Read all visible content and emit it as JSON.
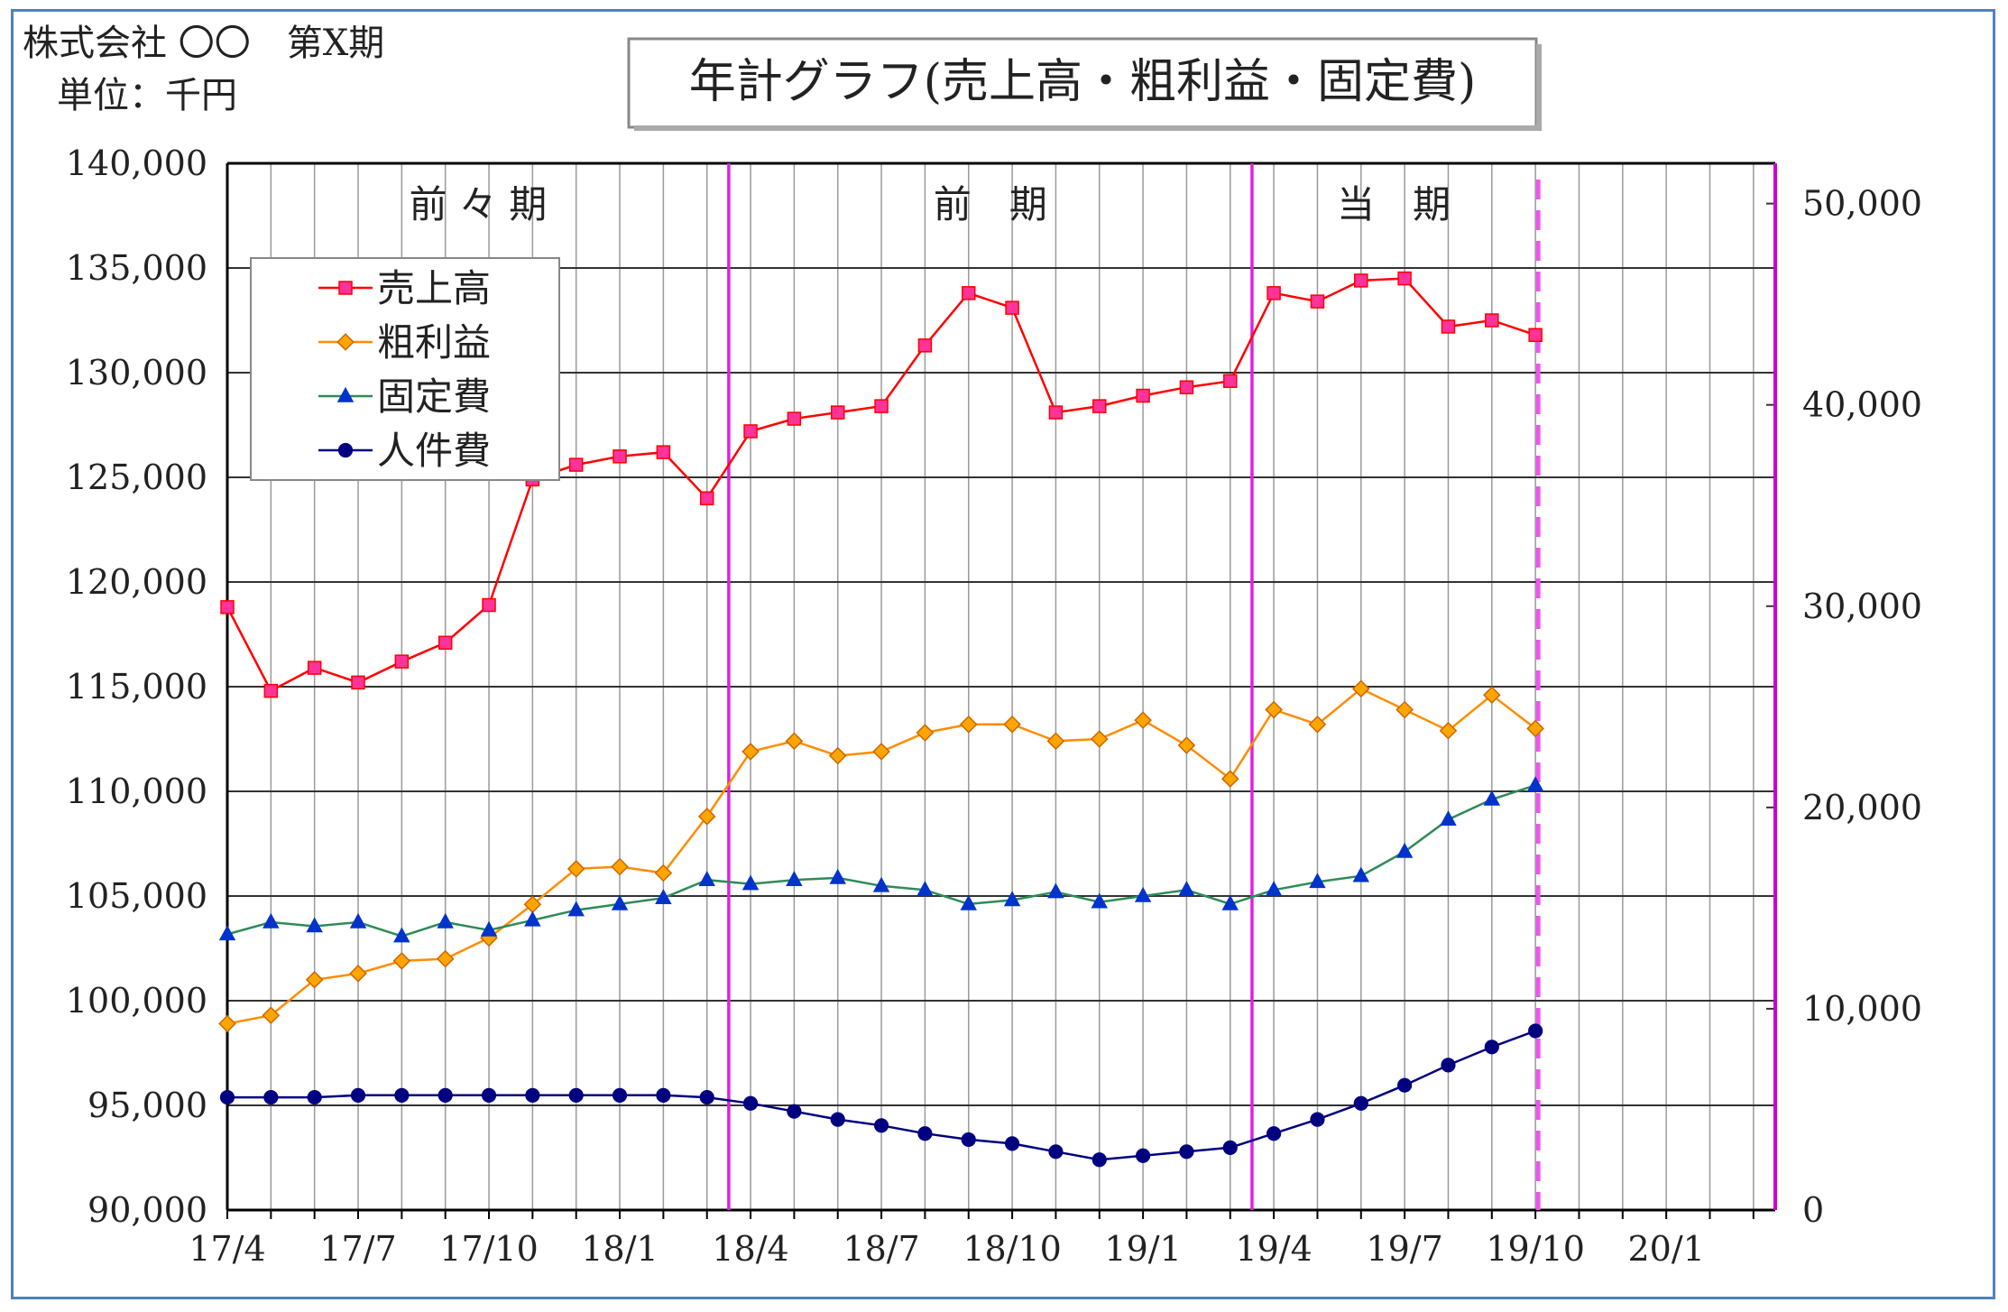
{
  "header": {
    "company": "株式会社 〇〇　第X期",
    "unit": "単位：千円"
  },
  "chart_data": {
    "type": "line",
    "title": "年計グラフ(売上高・粗利益・固定費)",
    "x_tick_labels": [
      "17/4",
      "17/7",
      "17/10",
      "18/1",
      "18/4",
      "18/7",
      "18/10",
      "19/1",
      "19/4",
      "19/7",
      "19/10",
      "20/1"
    ],
    "months": [
      "17/4",
      "17/5",
      "17/6",
      "17/7",
      "17/8",
      "17/9",
      "17/10",
      "17/11",
      "17/12",
      "18/1",
      "18/2",
      "18/3",
      "18/4",
      "18/5",
      "18/6",
      "18/7",
      "18/8",
      "18/9",
      "18/10",
      "18/11",
      "18/12",
      "19/1",
      "19/2",
      "19/3",
      "19/4",
      "19/5",
      "19/6",
      "19/7",
      "19/8",
      "19/9",
      "19/10",
      "19/11",
      "19/12",
      "20/1",
      "20/2",
      "20/3"
    ],
    "left_axis": {
      "ylim": [
        90000,
        140000
      ],
      "ticks": [
        "90,000",
        "95,000",
        "100,000",
        "105,000",
        "110,000",
        "115,000",
        "120,000",
        "125,000",
        "130,000",
        "135,000",
        "140,000"
      ]
    },
    "right_axis": {
      "ylim": [
        0,
        52000
      ],
      "ticks": [
        "0",
        "10,000",
        "20,000",
        "30,000",
        "40,000",
        "50,000"
      ]
    },
    "periods": [
      {
        "label": "前々期",
        "display": "前 々 期"
      },
      {
        "label": "前期",
        "display": "前　期"
      },
      {
        "label": "当期",
        "display": "当　期"
      }
    ],
    "period_dividers_after": [
      "18/3",
      "19/3"
    ],
    "current_marker": "19/10",
    "grid": true,
    "legend_position": "top-left",
    "series": [
      {
        "name": "売上高",
        "axis": "left",
        "color": "#ff0000",
        "marker_color": "#ff3399",
        "marker": "square",
        "values": [
          118800,
          114800,
          115900,
          115200,
          116200,
          117100,
          118900,
          124900,
          125600,
          126000,
          126200,
          124000,
          127200,
          127800,
          128100,
          128400,
          131300,
          133800,
          133100,
          128100,
          128400,
          128900,
          129300,
          129600,
          133800,
          133400,
          134400,
          134500,
          132200,
          132500,
          131800
        ]
      },
      {
        "name": "粗利益",
        "axis": "left",
        "color": "#ff8c00",
        "marker_color": "#ffa500",
        "marker": "diamond",
        "values": [
          98900,
          99300,
          101000,
          101300,
          101900,
          102000,
          103000,
          104600,
          106300,
          106400,
          106100,
          108800,
          111900,
          112400,
          111700,
          111900,
          112800,
          113200,
          113200,
          112400,
          112500,
          113400,
          112200,
          110600,
          113900,
          113200,
          114900,
          113900,
          112900,
          114600,
          113000
        ]
      },
      {
        "name": "固定費",
        "axis": "right",
        "color": "#2e8b57",
        "marker_color": "#0033cc",
        "marker": "triangle",
        "values": [
          13700,
          14300,
          14100,
          14300,
          13600,
          14300,
          13900,
          14400,
          14900,
          15200,
          15500,
          16400,
          16200,
          16400,
          16500,
          16100,
          15900,
          15200,
          15400,
          15800,
          15300,
          15600,
          15900,
          15200,
          15900,
          16300,
          16600,
          17800,
          19400,
          20400,
          21100
        ]
      },
      {
        "name": "人件費",
        "axis": "right",
        "color": "#000080",
        "marker_color": "#000080",
        "marker": "circle",
        "values": [
          5600,
          5600,
          5600,
          5700,
          5700,
          5700,
          5700,
          5700,
          5700,
          5700,
          5700,
          5600,
          5300,
          4900,
          4500,
          4200,
          3800,
          3500,
          3300,
          2900,
          2500,
          2700,
          2900,
          3100,
          3800,
          4500,
          5300,
          6200,
          7200,
          8100,
          8900
        ]
      }
    ]
  }
}
